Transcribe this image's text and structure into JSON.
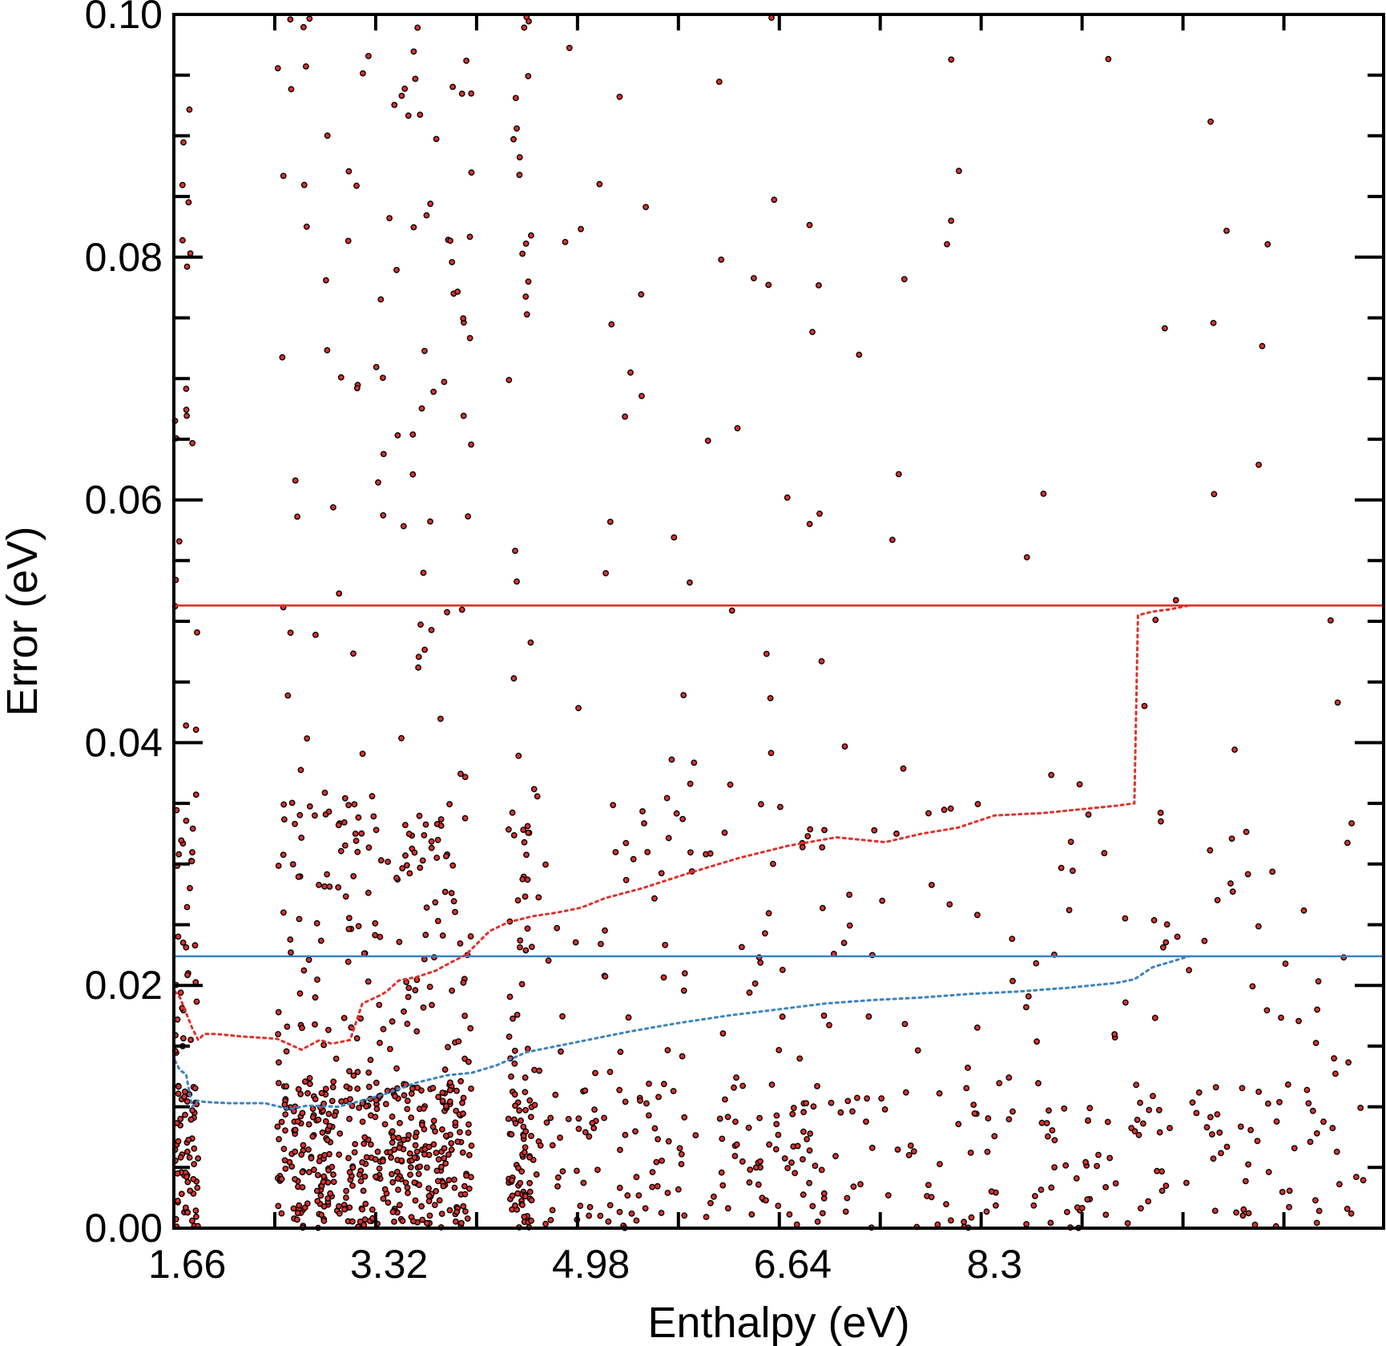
{
  "chart_data": {
    "type": "scatter",
    "title": "",
    "xlabel": "Enthalpy (eV)",
    "ylabel": "Error (eV)",
    "xlim": [
      1.55,
      11.5
    ],
    "ylim": [
      0.0,
      0.1
    ],
    "x_ticks": [
      "1.66",
      "3.32",
      "4.98",
      "6.64",
      "8.3"
    ],
    "y_ticks": [
      "0.00",
      "0.02",
      "0.04",
      "0.06",
      "0.08",
      "0.10"
    ],
    "grid": false,
    "legend": "none",
    "colors": {
      "points_fill": "#e0302a",
      "points_edge": "#000000",
      "red_series": "#e0302a",
      "blue_series": "#3b82c4",
      "axis": "#000000"
    },
    "series": [
      {
        "kind": "hline",
        "color": "red",
        "style": "solid",
        "y": 0.0513
      },
      {
        "kind": "hline",
        "color": "blue",
        "style": "solid",
        "y": 0.0224
      },
      {
        "kind": "line",
        "color": "red",
        "style": "dotted",
        "x": [
          1.56,
          1.6,
          1.7,
          1.75,
          1.8,
          1.9,
          2.1,
          2.4,
          2.6,
          2.75,
          2.85,
          3.0,
          3.1,
          3.25,
          3.3,
          3.4,
          3.55,
          3.7,
          3.85,
          3.95,
          4.1,
          4.15,
          4.3,
          4.5,
          4.7,
          4.9,
          5.1,
          5.4,
          5.8,
          6.2,
          6.6,
          7.0,
          7.4,
          7.7,
          8.0,
          8.3,
          8.7,
          9.3,
          9.45,
          9.48,
          9.6,
          9.75,
          9.9
        ],
        "y": [
          0.0195,
          0.019,
          0.0165,
          0.0155,
          0.016,
          0.016,
          0.0158,
          0.0156,
          0.0147,
          0.0155,
          0.0152,
          0.0155,
          0.0185,
          0.0192,
          0.0195,
          0.0204,
          0.0207,
          0.0212,
          0.022,
          0.0225,
          0.024,
          0.0245,
          0.0252,
          0.0257,
          0.026,
          0.0264,
          0.0272,
          0.028,
          0.0293,
          0.0305,
          0.0315,
          0.0322,
          0.0318,
          0.0325,
          0.033,
          0.034,
          0.0342,
          0.0348,
          0.035,
          0.0505,
          0.0508,
          0.051,
          0.0513
        ]
      },
      {
        "kind": "line",
        "color": "blue",
        "style": "dotted",
        "x": [
          1.56,
          1.6,
          1.65,
          1.7,
          1.75,
          1.8,
          2.0,
          2.3,
          2.5,
          2.65,
          2.9,
          3.1,
          3.3,
          3.55,
          3.8,
          4.0,
          4.2,
          4.45,
          4.7,
          5.0,
          5.3,
          5.7,
          6.1,
          6.5,
          6.9,
          7.3,
          7.7,
          8.1,
          8.5,
          8.9,
          9.3,
          9.45,
          9.6,
          9.9
        ],
        "y": [
          0.0138,
          0.013,
          0.0127,
          0.01,
          0.0105,
          0.0104,
          0.0103,
          0.0103,
          0.0098,
          0.0101,
          0.01,
          0.0105,
          0.0111,
          0.012,
          0.0126,
          0.0128,
          0.0134,
          0.0145,
          0.015,
          0.0156,
          0.0162,
          0.0169,
          0.0175,
          0.018,
          0.0185,
          0.0188,
          0.019,
          0.0193,
          0.0195,
          0.0198,
          0.0202,
          0.0205,
          0.0215,
          0.0224
        ]
      }
    ]
  }
}
